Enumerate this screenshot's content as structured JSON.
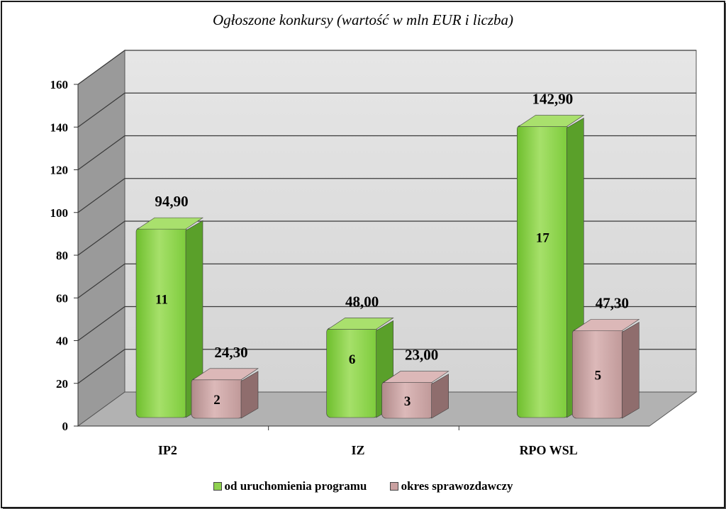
{
  "chart_data": {
    "type": "bar",
    "title": "Ogłoszone konkursy (wartość w mln EUR i liczba)",
    "categories": [
      "IP2",
      "IZ",
      "RPO WSL"
    ],
    "ylim": [
      0,
      160
    ],
    "yticks": [
      0,
      20,
      40,
      60,
      80,
      100,
      120,
      140,
      160
    ],
    "grid": true,
    "legend_position": "bottom",
    "series": [
      {
        "name": "od uruchomienia programu",
        "color": "#8fd14f",
        "values": [
          94.9,
          48.0,
          142.9
        ],
        "value_labels": [
          "94,90",
          "48,00",
          "142,90"
        ],
        "counts": [
          "11",
          "6",
          "17"
        ]
      },
      {
        "name": "okres sprawozdawczy",
        "color": "#c9a0a0",
        "values": [
          24.3,
          23.0,
          47.3
        ],
        "value_labels": [
          "24,30",
          "23,00",
          "47,30"
        ],
        "counts": [
          "2",
          "3",
          "5"
        ]
      }
    ]
  },
  "legend": {
    "item1": "od uruchomienia programu",
    "item2": "okres sprawozdawczy"
  }
}
